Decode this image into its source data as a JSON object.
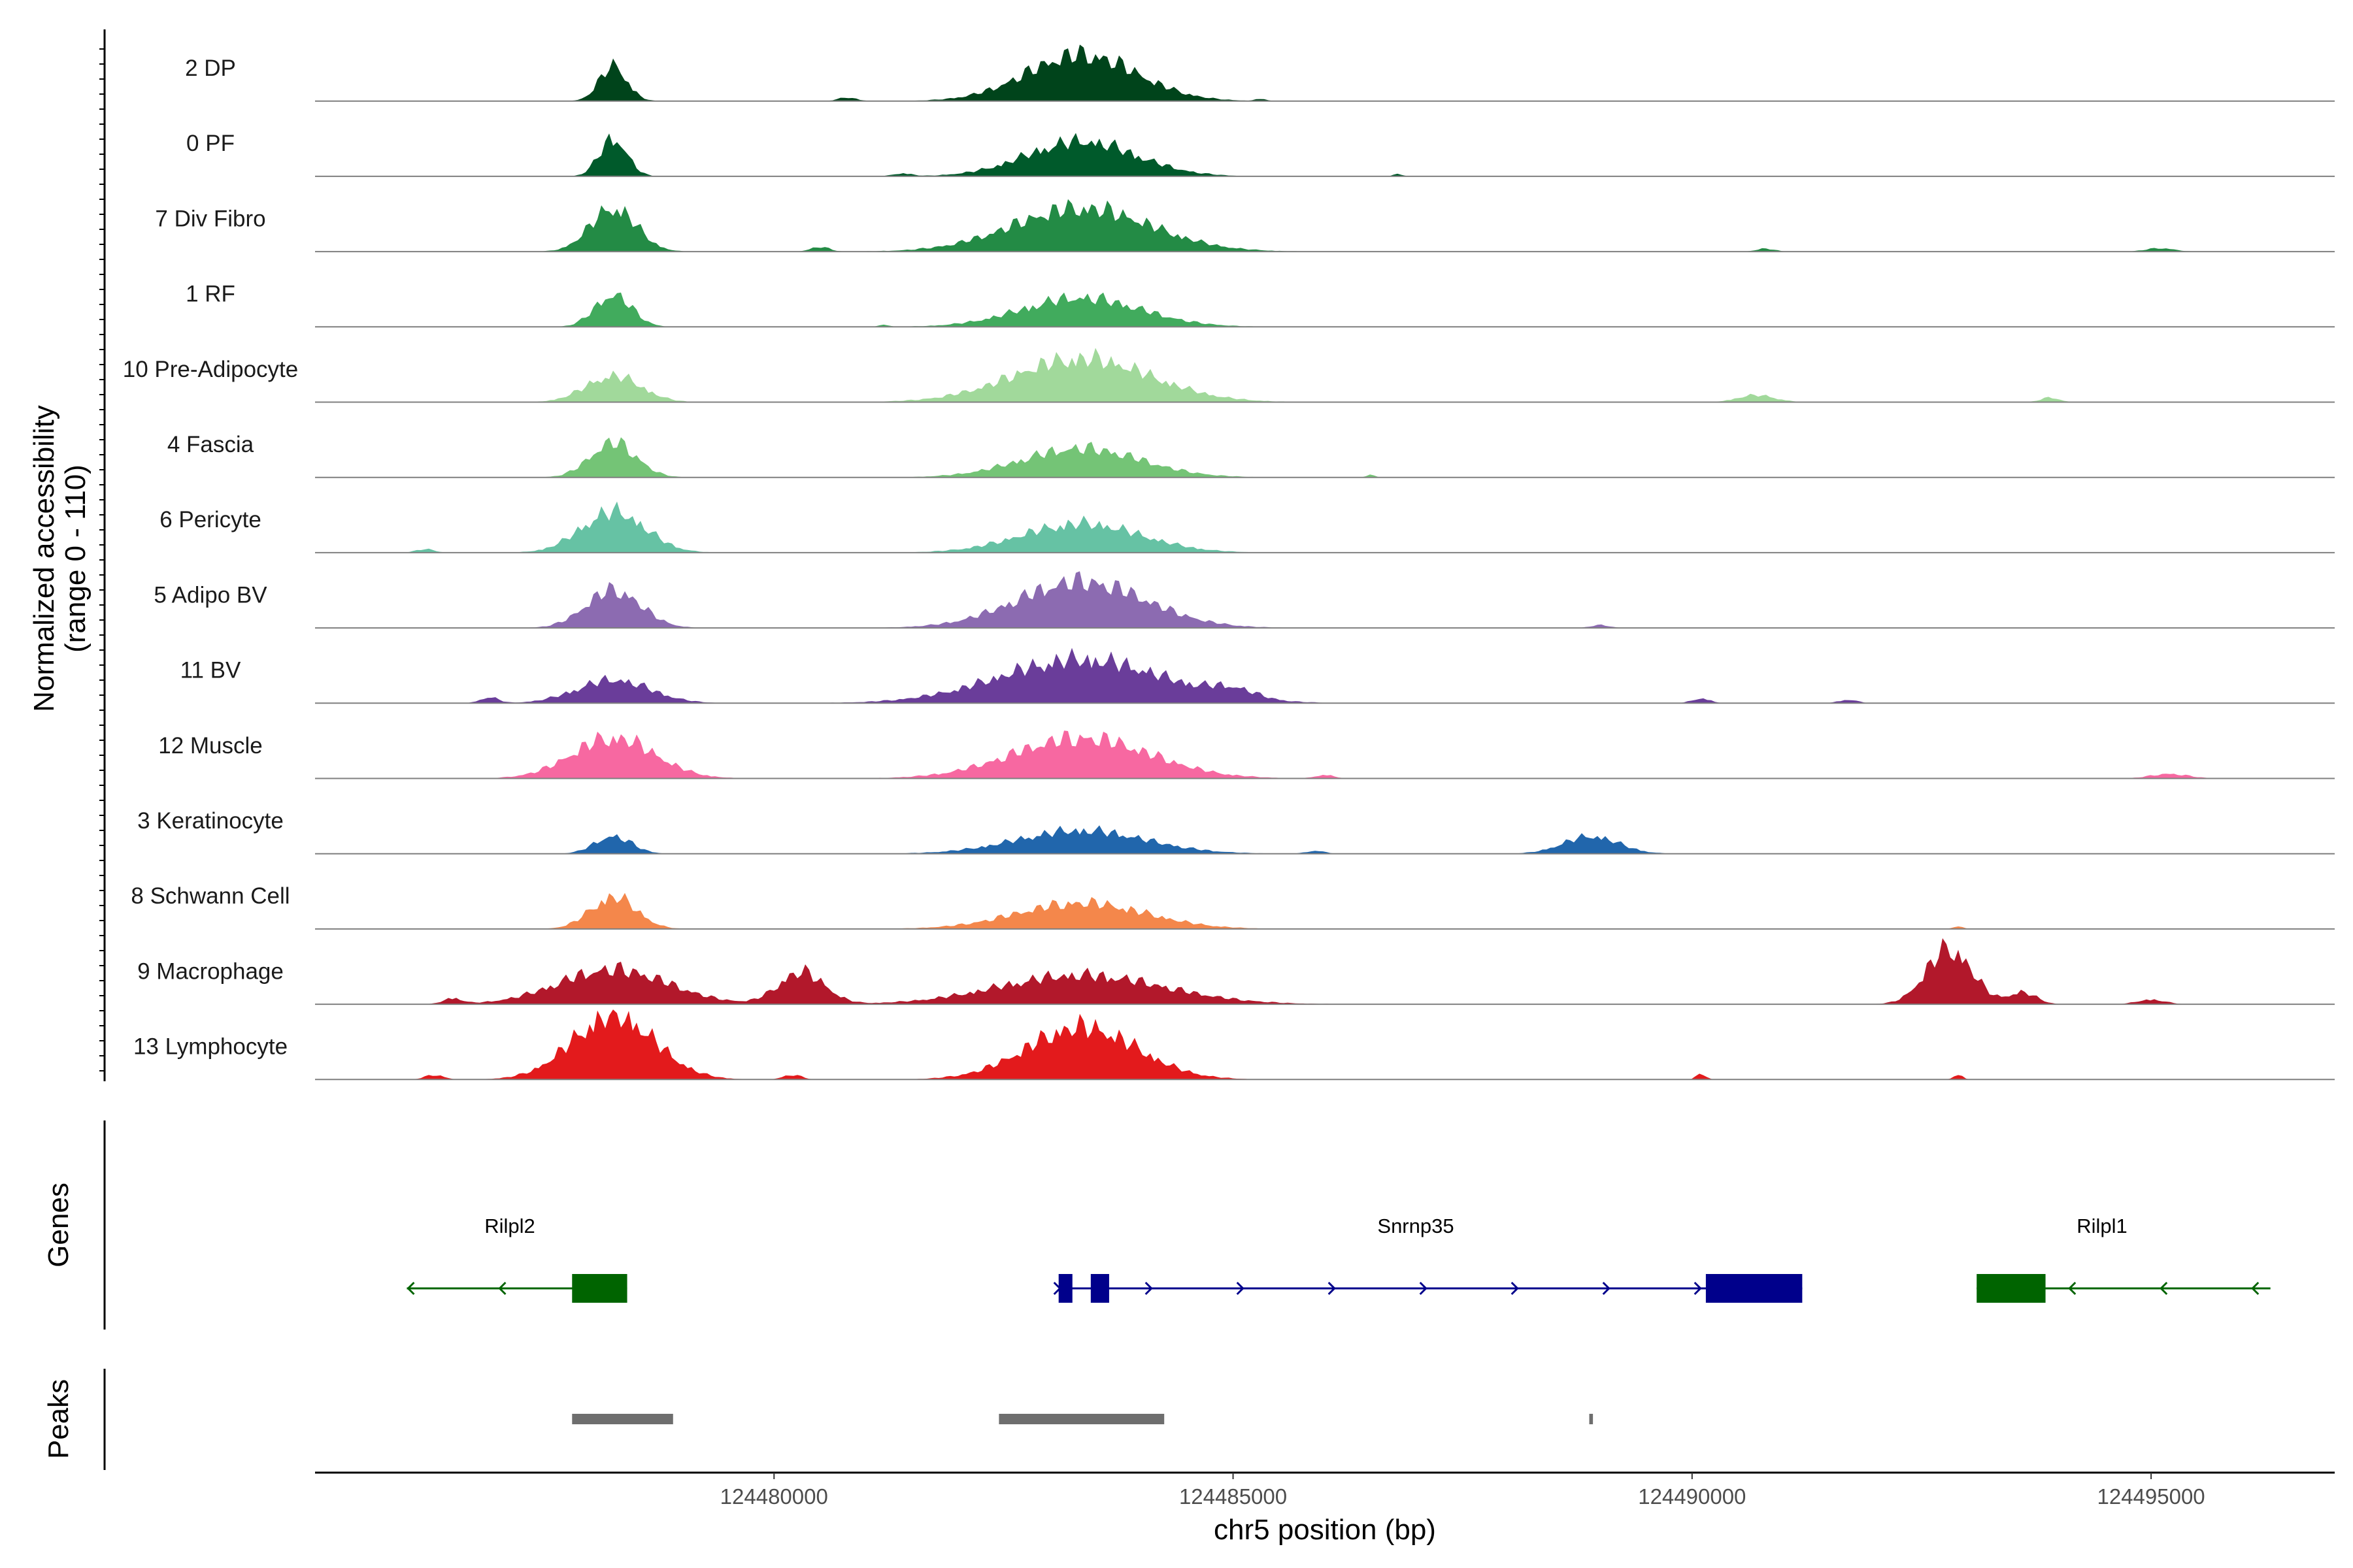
{
  "chart_data": {
    "type": "area",
    "ylabel_line1": "Normalized accessibility",
    "ylabel_line2": "(range 0 - 110)",
    "ylim": [
      0,
      110
    ],
    "xlabel": "chr5 position (bp)",
    "xlim": [
      124475000,
      124497000
    ],
    "x_ticks": [
      124480000,
      124485000,
      124490000,
      124495000
    ],
    "x_tick_labels": [
      "124480000",
      "124485000",
      "124490000",
      "124495000"
    ],
    "series": [
      {
        "name": "2 DP",
        "color": "#00441b",
        "peaks": [
          [
            124478250,
            60,
            3
          ],
          [
            124480800,
            6,
            2
          ],
          [
            124483350,
            80,
            12
          ],
          [
            124485300,
            4,
            1
          ]
        ]
      },
      {
        "name": "0 PF",
        "color": "#005a2b",
        "peaks": [
          [
            124478250,
            65,
            3
          ],
          [
            124481400,
            5,
            2
          ],
          [
            124483350,
            60,
            12
          ],
          [
            124486800,
            4,
            1
          ]
        ]
      },
      {
        "name": "7 Div Fibro",
        "color": "#238b45",
        "peaks": [
          [
            124478250,
            75,
            5
          ],
          [
            124480500,
            8,
            2
          ],
          [
            124483350,
            75,
            15
          ],
          [
            124490800,
            5,
            2
          ],
          [
            124495100,
            6,
            3
          ]
        ]
      },
      {
        "name": "1 RF",
        "color": "#41ab5d",
        "peaks": [
          [
            124478250,
            55,
            4
          ],
          [
            124483350,
            50,
            13
          ],
          [
            124481200,
            4,
            1
          ]
        ]
      },
      {
        "name": "10 Pre-Adipocyte",
        "color": "#a1d99b",
        "peaks": [
          [
            124478250,
            45,
            6
          ],
          [
            124483350,
            75,
            15
          ],
          [
            124490700,
            12,
            4
          ],
          [
            124493900,
            8,
            2
          ]
        ]
      },
      {
        "name": "4 Fascia",
        "color": "#74c476",
        "peaks": [
          [
            124478250,
            60,
            5
          ],
          [
            124483350,
            50,
            13
          ],
          [
            124486500,
            4,
            1
          ]
        ]
      },
      {
        "name": "6 Pericyte",
        "color": "#66c2a4",
        "peaks": [
          [
            124478250,
            70,
            7
          ],
          [
            124483350,
            50,
            13
          ],
          [
            124476200,
            6,
            2
          ]
        ]
      },
      {
        "name": "5 Adipo BV",
        "color": "#8c6bb1",
        "peaks": [
          [
            124478250,
            65,
            6
          ],
          [
            124483350,
            80,
            14
          ],
          [
            124489000,
            5,
            2
          ]
        ]
      },
      {
        "name": "11 BV",
        "color": "#6a3d9a",
        "peaks": [
          [
            124478250,
            40,
            8
          ],
          [
            124483350,
            75,
            18
          ],
          [
            124485000,
            15,
            5
          ],
          [
            124476900,
            10,
            2
          ],
          [
            124490100,
            8,
            2
          ],
          [
            124491700,
            6,
            2
          ]
        ]
      },
      {
        "name": "12 Muscle",
        "color": "#f768a1",
        "peaks": [
          [
            124478250,
            70,
            9
          ],
          [
            124483350,
            70,
            15
          ],
          [
            124486000,
            6,
            2
          ],
          [
            124495200,
            8,
            4
          ]
        ]
      },
      {
        "name": "3 Keratinocyte",
        "color": "#2166ac",
        "peaks": [
          [
            124478250,
            30,
            4
          ],
          [
            124483350,
            40,
            14
          ],
          [
            124488900,
            30,
            6
          ],
          [
            124485900,
            5,
            2
          ]
        ]
      },
      {
        "name": "8 Schwann Cell",
        "color": "#f4874b",
        "peaks": [
          [
            124478250,
            55,
            5
          ],
          [
            124483350,
            45,
            14
          ],
          [
            124492900,
            5,
            1
          ]
        ]
      },
      {
        "name": "9 Macrophage",
        "color": "#b2182b",
        "peaks": [
          [
            124478250,
            60,
            12
          ],
          [
            124480300,
            55,
            5
          ],
          [
            124483350,
            50,
            18
          ],
          [
            124492800,
            95,
            5
          ],
          [
            124493600,
            20,
            3
          ],
          [
            124476500,
            10,
            2
          ],
          [
            124495000,
            8,
            3
          ]
        ]
      },
      {
        "name": "13 Lymphocyte",
        "color": "#e31a1c",
        "peaks": [
          [
            124478250,
            110,
            9
          ],
          [
            124483350,
            90,
            12
          ],
          [
            124476300,
            8,
            2
          ],
          [
            124480200,
            8,
            2
          ],
          [
            124490100,
            10,
            1
          ],
          [
            124492900,
            8,
            1
          ]
        ]
      }
    ],
    "genes_label": "Genes",
    "genes": [
      {
        "name": "Rilpl2",
        "strand": "-",
        "start": 124476000,
        "end": 124478400,
        "color": "#006400",
        "exons": [
          [
            124477800,
            124478400
          ]
        ]
      },
      {
        "name": "Snrnp35",
        "strand": "+",
        "start": 124483100,
        "end": 124491200,
        "color": "#00008b",
        "exons": [
          [
            124483100,
            124483250
          ],
          [
            124483450,
            124483650
          ],
          [
            124490150,
            124491200
          ]
        ]
      },
      {
        "name": "Rilpl1",
        "strand": "-",
        "start": 124493100,
        "end": 124496300,
        "color": "#006400",
        "exons": [
          [
            124493100,
            124493850
          ]
        ]
      }
    ],
    "peaks_label": "Peaks",
    "peak_regions": [
      [
        124477800,
        124478900
      ],
      [
        124482450,
        124484250
      ],
      [
        124488880,
        124488920
      ]
    ]
  }
}
